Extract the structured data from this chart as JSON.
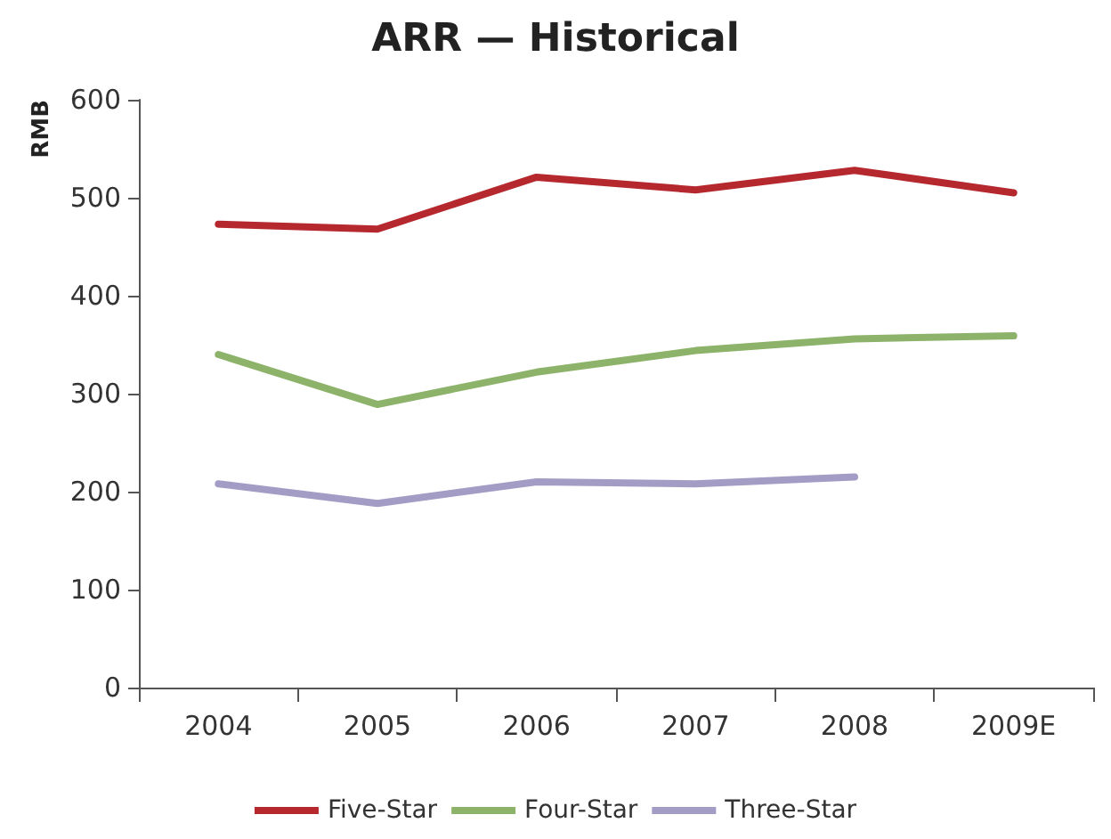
{
  "chart_data": {
    "type": "line",
    "title": "ARR — Historical",
    "ylabel": "RMB",
    "categories": [
      "2004",
      "2005",
      "2006",
      "2007",
      "2008",
      "2009E"
    ],
    "series": [
      {
        "name": "Five-Star",
        "color": "#b5282e",
        "values": [
          473,
          468,
          521,
          508,
          528,
          505
        ]
      },
      {
        "name": "Four-Star",
        "color": "#8db36a",
        "values": [
          340,
          289,
          322,
          344,
          356,
          359
        ]
      },
      {
        "name": "Three-Star",
        "color": "#a39dc6",
        "values": [
          208,
          188,
          210,
          208,
          215,
          null
        ]
      }
    ],
    "ylim": [
      0,
      600
    ],
    "yticks": [
      0,
      100,
      200,
      300,
      400,
      500,
      600
    ],
    "grid": false,
    "legend": "bottom",
    "marker": "none",
    "line_style": "solid"
  }
}
